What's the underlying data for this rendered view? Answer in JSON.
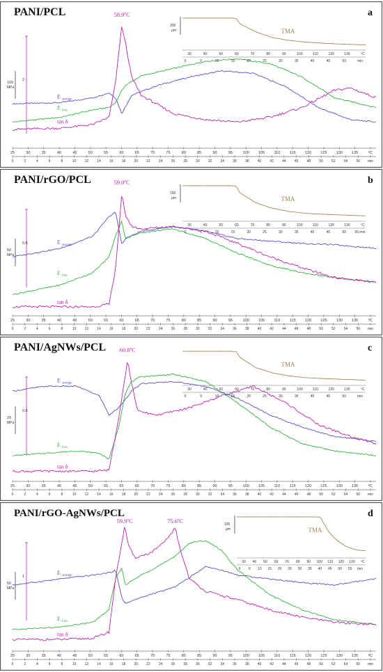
{
  "figure": {
    "panels": [
      {
        "title": "PANI/PCL",
        "letter": "a",
        "peaks": [
          {
            "label": "58.9ºC",
            "t": 59
          }
        ],
        "scale": {
          "stiff": "100",
          "stiff_unit": "MPa",
          "tan": "2"
        },
        "tma": {
          "label": "TMA",
          "scale": "200",
          "unit": "µm",
          "temp_ticks": [
            "30",
            "40",
            "50",
            "60",
            "70",
            "80",
            "90",
            "100",
            "110",
            "120",
            "130",
            "ºC"
          ],
          "time_ticks": [
            "0",
            "5",
            "10",
            "15",
            "20",
            "25",
            "30",
            "35",
            "40",
            "45",
            "50",
            "min"
          ]
        },
        "labels": {
          "storage": "E",
          "storage_sub": "storage",
          "loss": "E",
          "loss_sub": "loss",
          "tan": "tan δ"
        }
      },
      {
        "title": "PANI/rGO/PCL",
        "letter": "b",
        "peaks": [
          {
            "label": "59.0ºC",
            "t": 59
          }
        ],
        "scale": {
          "stiff": "50",
          "stiff_unit": "MPa",
          "tan": "0.5"
        },
        "tma": {
          "label": "TMA",
          "scale": "100",
          "unit": "µm",
          "temp_ticks": [
            "30",
            "40",
            "50",
            "60",
            "70",
            "80",
            "90",
            "100",
            "110",
            "120",
            "130",
            "ºC"
          ],
          "time_ticks": [
            "0",
            "5",
            "10",
            "15",
            "20",
            "25",
            "30",
            "35",
            "40",
            "45",
            "50",
            "55 min"
          ]
        },
        "labels": {
          "storage": "E",
          "storage_sub": "storage",
          "loss": "E",
          "loss_sub": "loss",
          "tan": "tan δ"
        }
      },
      {
        "title": "PANI/AgNWs/PCL",
        "letter": "c",
        "peaks": [
          {
            "label": "60.8ºC",
            "t": 60.8
          }
        ],
        "scale": {
          "stiff": "20",
          "stiff_unit": "MPa",
          "tan": "0.5"
        },
        "tma": {
          "label": "TMA",
          "scale": "",
          "unit": "",
          "temp_ticks": [
            "30",
            "40",
            "50",
            "60",
            "70",
            "80",
            "90",
            "100",
            "110",
            "120",
            "130",
            "ºC"
          ],
          "time_ticks": [
            "0",
            "5",
            "10",
            "15",
            "20",
            "25",
            "30",
            "35",
            "40",
            "45",
            "50",
            "min"
          ]
        },
        "labels": {
          "storage": "E",
          "storage_sub": "storage",
          "loss": "E",
          "loss_sub": "loss",
          "tan": "tan δ"
        }
      },
      {
        "title": "PANI/rGO-AgNWs/PCL",
        "letter": "d",
        "peaks": [
          {
            "label": "59.9ºC",
            "t": 59.9
          },
          {
            "label": "75.6ºC",
            "t": 75.6
          }
        ],
        "scale": {
          "stiff": "50",
          "stiff_unit": "MPa",
          "tan": "1"
        },
        "tma": {
          "label": "TMA",
          "scale": "100",
          "unit": "µm",
          "temp_ticks": [
            "30",
            "40",
            "50",
            "60",
            "70",
            "80",
            "90",
            "100",
            "110",
            "120",
            "130",
            "ºC"
          ],
          "time_ticks": [
            "0",
            "5",
            "10",
            "15",
            "20",
            "25",
            "30",
            "35",
            "40",
            "45",
            "50",
            "55",
            "min"
          ]
        },
        "labels": {
          "storage": "E",
          "storage_sub": "storage",
          "loss": "E",
          "loss_sub": "loss",
          "tan": "tan δ"
        }
      }
    ],
    "x_temp_ticks": [
      "25",
      "30",
      "35",
      "40",
      "45",
      "50",
      "55",
      "60",
      "65",
      "70",
      "75",
      "80",
      "85",
      "90",
      "95",
      "100",
      "105",
      "110",
      "115",
      "120",
      "125",
      "130",
      "135",
      "ºC"
    ],
    "x_time_ticks": [
      "0",
      "2",
      "4",
      "6",
      "8",
      "10",
      "12",
      "14",
      "16",
      "18",
      "20",
      "22",
      "24",
      "26",
      "28",
      "30",
      "32",
      "34",
      "36",
      "38",
      "40",
      "42",
      "44",
      "46",
      "48",
      "50",
      "52",
      "54",
      "56",
      "min"
    ],
    "colors": {
      "storage": "#5050c8",
      "loss": "#30b040",
      "tan": "#c020b0",
      "tma": "#a08850",
      "frame": "#555555"
    }
  },
  "chart_data": [
    {
      "type": "line",
      "title": "PANI/PCL",
      "x_temp_range": [
        25,
        138
      ],
      "series": [
        {
          "name": "Estorage",
          "x": [
            25,
            40,
            50,
            55,
            57,
            59,
            60,
            62,
            70,
            80,
            90,
            100,
            110,
            120,
            130,
            138
          ],
          "y": [
            0.33,
            0.34,
            0.38,
            0.42,
            0.38,
            0.25,
            0.3,
            0.4,
            0.48,
            0.55,
            0.6,
            0.58,
            0.47,
            0.3,
            0.2,
            0.18
          ]
        },
        {
          "name": "Eloss",
          "x": [
            25,
            40,
            50,
            55,
            57,
            59,
            60,
            65,
            75,
            85,
            95,
            105,
            115,
            125,
            138
          ],
          "y": [
            0.18,
            0.22,
            0.28,
            0.3,
            0.34,
            0.44,
            0.48,
            0.56,
            0.62,
            0.68,
            0.7,
            0.66,
            0.55,
            0.38,
            0.3
          ]
        },
        {
          "name": "tan δ",
          "x": [
            25,
            40,
            50,
            55,
            57,
            58.9,
            60,
            62,
            65,
            75,
            85,
            95,
            105,
            115,
            125,
            130,
            138
          ],
          "y": [
            0.12,
            0.13,
            0.16,
            0.22,
            0.5,
            0.96,
            0.85,
            0.55,
            0.4,
            0.25,
            0.2,
            0.18,
            0.22,
            0.3,
            0.44,
            0.46,
            0.38
          ]
        },
        {
          "name": "TMA",
          "x": [
            25,
            55,
            58,
            60,
            70,
            80,
            90,
            100,
            110,
            120,
            130,
            137
          ],
          "y": [
            1.0,
            1.0,
            0.98,
            0.8,
            0.5,
            0.3,
            0.2,
            0.14,
            0.1,
            0.07,
            0.05,
            0.04
          ]
        }
      ]
    },
    {
      "type": "line",
      "title": "PANI/rGO/PCL",
      "x_temp_range": [
        25,
        138
      ],
      "series": [
        {
          "name": "Estorage",
          "x": [
            25,
            40,
            50,
            55,
            57,
            59,
            60,
            65,
            75,
            85,
            95,
            105,
            115,
            125,
            138
          ],
          "y": [
            0.45,
            0.52,
            0.62,
            0.78,
            0.82,
            0.55,
            0.6,
            0.66,
            0.7,
            0.66,
            0.6,
            0.58,
            0.56,
            0.55,
            0.52
          ]
        },
        {
          "name": "Eloss",
          "x": [
            25,
            40,
            50,
            55,
            57,
            59,
            60,
            65,
            75,
            85,
            95,
            105,
            115,
            125,
            138
          ],
          "y": [
            0.14,
            0.22,
            0.32,
            0.45,
            0.62,
            0.75,
            0.6,
            0.65,
            0.68,
            0.6,
            0.48,
            0.38,
            0.32,
            0.28,
            0.24
          ]
        },
        {
          "name": "tan δ",
          "x": [
            25,
            40,
            50,
            55,
            57,
            59,
            60,
            62,
            65,
            75,
            85,
            95,
            105,
            115,
            125,
            138
          ],
          "y": [
            0.04,
            0.04,
            0.04,
            0.06,
            0.35,
            0.97,
            0.8,
            0.7,
            0.68,
            0.7,
            0.66,
            0.56,
            0.45,
            0.36,
            0.28,
            0.24
          ]
        },
        {
          "name": "TMA",
          "x": [
            25,
            55,
            58,
            60,
            70,
            80,
            90,
            100,
            110,
            120,
            130,
            137
          ],
          "y": [
            1.0,
            1.0,
            0.98,
            0.78,
            0.45,
            0.28,
            0.18,
            0.12,
            0.09,
            0.07,
            0.05,
            0.04
          ]
        }
      ]
    },
    {
      "type": "line",
      "title": "PANI/AgNWs/PCL",
      "x_temp_range": [
        25,
        138
      ],
      "series": [
        {
          "name": "Estorage",
          "x": [
            25,
            35,
            45,
            52,
            55,
            58,
            60,
            62,
            65,
            75,
            85,
            95,
            105,
            115,
            125,
            138
          ],
          "y": [
            0.72,
            0.76,
            0.76,
            0.68,
            0.52,
            0.58,
            0.65,
            0.72,
            0.78,
            0.8,
            0.76,
            0.66,
            0.52,
            0.42,
            0.34,
            0.3
          ]
        },
        {
          "name": "Eloss",
          "x": [
            25,
            35,
            45,
            52,
            55,
            58,
            60,
            62,
            65,
            75,
            85,
            95,
            105,
            115,
            125,
            138
          ],
          "y": [
            0.18,
            0.2,
            0.22,
            0.2,
            0.15,
            0.42,
            0.7,
            0.8,
            0.84,
            0.86,
            0.8,
            0.62,
            0.42,
            0.28,
            0.22,
            0.18
          ]
        },
        {
          "name": "tan δ",
          "x": [
            25,
            40,
            50,
            55,
            58,
            60.8,
            62,
            64,
            70,
            80,
            90,
            100,
            110,
            120,
            130,
            138
          ],
          "y": [
            0.05,
            0.05,
            0.05,
            0.06,
            0.5,
            0.98,
            0.78,
            0.55,
            0.52,
            0.58,
            0.68,
            0.76,
            0.62,
            0.44,
            0.34,
            0.28
          ]
        },
        {
          "name": "TMA",
          "x": [
            25,
            55,
            58,
            60,
            70,
            80,
            90,
            100,
            110,
            120,
            130,
            137
          ],
          "y": [
            1.0,
            1.0,
            0.98,
            0.8,
            0.45,
            0.28,
            0.18,
            0.12,
            0.09,
            0.07,
            0.05,
            0.04
          ]
        }
      ]
    },
    {
      "type": "line",
      "title": "PANI/rGO-AgNWs/PCL",
      "x_temp_range": [
        25,
        138
      ],
      "series": [
        {
          "name": "Estorage",
          "x": [
            25,
            40,
            50,
            55,
            57,
            59,
            60,
            65,
            75,
            80,
            85,
            90,
            95,
            105,
            115,
            125,
            138
          ],
          "y": [
            0.5,
            0.55,
            0.58,
            0.6,
            0.62,
            0.4,
            0.35,
            0.4,
            0.48,
            0.56,
            0.65,
            0.62,
            0.58,
            0.55,
            0.52,
            0.5,
            0.55
          ]
        },
        {
          "name": "Eloss",
          "x": [
            25,
            40,
            50,
            55,
            57,
            59,
            60,
            65,
            75,
            80,
            85,
            90,
            95,
            105,
            115,
            125,
            138
          ],
          "y": [
            0.14,
            0.16,
            0.2,
            0.3,
            0.55,
            0.64,
            0.5,
            0.58,
            0.72,
            0.84,
            0.86,
            0.78,
            0.62,
            0.42,
            0.3,
            0.22,
            0.18
          ]
        },
        {
          "name": "tan δ",
          "x": [
            25,
            40,
            50,
            55,
            57,
            59.9,
            61,
            63,
            68,
            72,
            75.6,
            77,
            80,
            85,
            95,
            105,
            115,
            125,
            138
          ],
          "y": [
            0.06,
            0.06,
            0.07,
            0.12,
            0.55,
            0.98,
            0.82,
            0.72,
            0.76,
            0.84,
            0.96,
            0.8,
            0.55,
            0.45,
            0.38,
            0.3,
            0.24,
            0.2,
            0.18
          ]
        },
        {
          "name": "TMA",
          "x": [
            25,
            95,
            98,
            100,
            105,
            110,
            115,
            120,
            125,
            130,
            137
          ],
          "y": [
            1.0,
            1.0,
            0.98,
            0.85,
            0.6,
            0.42,
            0.3,
            0.2,
            0.14,
            0.1,
            0.08
          ]
        }
      ]
    }
  ]
}
